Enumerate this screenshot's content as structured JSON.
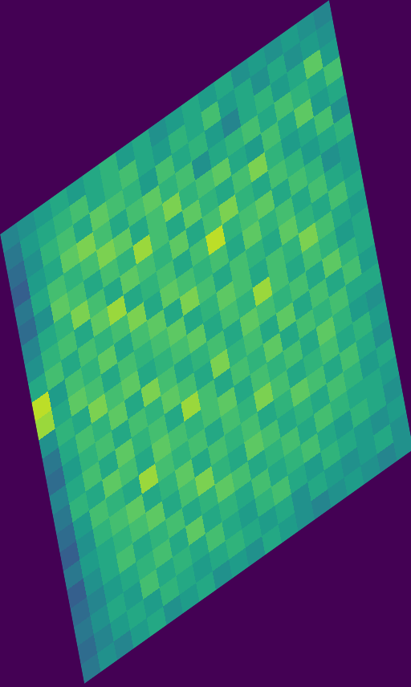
{
  "chart_data": {
    "type": "heatmap",
    "zlim": [
      0,
      1
    ],
    "tick_labels": false,
    "z": [
      [
        0.45,
        0.5,
        0.55,
        0.6,
        0.55,
        0.6,
        0.65,
        0.55,
        0.6,
        0.5,
        0.55,
        0.6,
        0.55,
        0.6,
        0.5,
        0.55,
        0.5,
        0.55,
        0.5,
        0.45
      ],
      [
        0.4,
        0.55,
        0.6,
        0.65,
        0.7,
        0.6,
        0.65,
        0.7,
        0.6,
        0.55,
        0.65,
        0.6,
        0.7,
        0.55,
        0.6,
        0.5,
        0.6,
        0.5,
        0.55,
        0.5
      ],
      [
        0.35,
        0.5,
        0.65,
        0.7,
        0.6,
        0.75,
        0.7,
        0.65,
        0.55,
        0.7,
        0.6,
        0.65,
        0.55,
        0.45,
        0.6,
        0.65,
        0.55,
        0.6,
        0.75,
        0.55
      ],
      [
        0.3,
        0.55,
        0.6,
        0.75,
        0.8,
        0.7,
        0.6,
        0.7,
        0.75,
        0.65,
        0.7,
        0.5,
        0.6,
        0.65,
        0.7,
        0.6,
        0.7,
        0.65,
        0.6,
        0.7
      ],
      [
        0.4,
        0.6,
        0.7,
        0.65,
        0.7,
        0.8,
        0.75,
        0.6,
        0.7,
        0.8,
        0.65,
        0.7,
        0.75,
        0.6,
        0.55,
        0.7,
        0.6,
        0.75,
        0.55,
        0.6
      ],
      [
        0.35,
        0.5,
        0.75,
        0.7,
        0.6,
        0.7,
        0.65,
        0.85,
        0.7,
        0.6,
        0.75,
        0.65,
        0.6,
        0.7,
        0.8,
        0.65,
        0.55,
        0.6,
        0.7,
        0.5
      ],
      [
        0.45,
        0.6,
        0.65,
        0.8,
        0.7,
        0.6,
        0.75,
        0.7,
        0.65,
        0.75,
        0.6,
        0.7,
        0.8,
        0.65,
        0.6,
        0.7,
        0.65,
        0.55,
        0.6,
        0.65
      ],
      [
        0.5,
        0.65,
        0.7,
        0.6,
        0.75,
        0.85,
        0.6,
        0.65,
        0.7,
        0.6,
        0.7,
        0.9,
        0.65,
        0.7,
        0.75,
        0.6,
        0.7,
        0.65,
        0.5,
        0.55
      ],
      [
        0.6,
        0.7,
        0.6,
        0.7,
        0.65,
        0.7,
        0.8,
        0.6,
        0.75,
        0.7,
        0.65,
        0.7,
        0.6,
        0.75,
        0.65,
        0.7,
        0.6,
        0.7,
        0.6,
        0.55
      ],
      [
        0.9,
        0.55,
        0.7,
        0.65,
        0.75,
        0.6,
        0.7,
        0.75,
        0.6,
        0.8,
        0.7,
        0.6,
        0.7,
        0.65,
        0.6,
        0.75,
        0.65,
        0.6,
        0.7,
        0.6
      ],
      [
        0.85,
        0.6,
        0.75,
        0.7,
        0.6,
        0.7,
        0.65,
        0.7,
        0.75,
        0.6,
        0.65,
        0.75,
        0.7,
        0.6,
        0.7,
        0.65,
        0.8,
        0.7,
        0.6,
        0.55
      ],
      [
        0.5,
        0.65,
        0.6,
        0.8,
        0.7,
        0.75,
        0.6,
        0.65,
        0.7,
        0.75,
        0.6,
        0.7,
        0.65,
        0.85,
        0.7,
        0.6,
        0.7,
        0.65,
        0.55,
        0.6
      ],
      [
        0.4,
        0.6,
        0.7,
        0.65,
        0.75,
        0.6,
        0.8,
        0.7,
        0.6,
        0.65,
        0.7,
        0.6,
        0.75,
        0.7,
        0.65,
        0.7,
        0.6,
        0.75,
        0.65,
        0.6
      ],
      [
        0.35,
        0.55,
        0.65,
        0.7,
        0.6,
        0.7,
        0.65,
        0.75,
        0.7,
        0.6,
        0.8,
        0.65,
        0.7,
        0.6,
        0.75,
        0.6,
        0.7,
        0.6,
        0.7,
        0.55
      ],
      [
        0.45,
        0.6,
        0.7,
        0.6,
        0.75,
        0.65,
        0.7,
        0.6,
        0.85,
        0.7,
        0.6,
        0.7,
        0.65,
        0.75,
        0.6,
        0.7,
        0.65,
        0.7,
        0.6,
        0.6
      ],
      [
        0.4,
        0.65,
        0.6,
        0.75,
        0.7,
        0.6,
        0.75,
        0.7,
        0.65,
        0.7,
        0.75,
        0.6,
        0.7,
        0.65,
        0.7,
        0.6,
        0.75,
        0.65,
        0.55,
        0.5
      ],
      [
        0.35,
        0.55,
        0.7,
        0.65,
        0.6,
        0.85,
        0.7,
        0.65,
        0.7,
        0.6,
        0.7,
        0.65,
        0.8,
        0.7,
        0.6,
        0.65,
        0.7,
        0.6,
        0.65,
        0.55
      ],
      [
        0.3,
        0.5,
        0.65,
        0.7,
        0.75,
        0.6,
        0.65,
        0.75,
        0.6,
        0.7,
        0.65,
        0.7,
        0.6,
        0.65,
        0.75,
        0.7,
        0.6,
        0.7,
        0.6,
        0.5
      ],
      [
        0.4,
        0.55,
        0.6,
        0.65,
        0.7,
        0.75,
        0.6,
        0.7,
        0.8,
        0.65,
        0.6,
        0.75,
        0.7,
        0.6,
        0.65,
        0.6,
        0.7,
        0.65,
        0.55,
        0.6
      ],
      [
        0.3,
        0.5,
        0.6,
        0.7,
        0.6,
        0.65,
        0.7,
        0.6,
        0.65,
        0.75,
        0.7,
        0.6,
        0.65,
        0.7,
        0.6,
        0.7,
        0.65,
        0.6,
        0.6,
        0.55
      ],
      [
        0.35,
        0.45,
        0.55,
        0.6,
        0.65,
        0.7,
        0.6,
        0.75,
        0.6,
        0.65,
        0.6,
        0.7,
        0.6,
        0.65,
        0.7,
        0.6,
        0.55,
        0.65,
        0.6,
        0.5
      ],
      [
        0.4,
        0.5,
        0.6,
        0.55,
        0.7,
        0.6,
        0.65,
        0.6,
        0.7,
        0.6,
        0.55,
        0.65,
        0.7,
        0.6,
        0.55,
        0.65,
        0.6,
        0.55,
        0.5,
        0.55
      ],
      [
        0.35,
        0.45,
        0.55,
        0.6,
        0.55,
        0.65,
        0.6,
        0.55,
        0.6,
        0.65,
        0.6,
        0.55,
        0.6,
        0.5,
        0.6,
        0.55,
        0.5,
        0.55,
        0.6,
        0.5
      ],
      [
        0.4,
        0.5,
        0.45,
        0.55,
        0.6,
        0.5,
        0.55,
        0.6,
        0.5,
        0.55,
        0.5,
        0.6,
        0.55,
        0.5,
        0.45,
        0.5,
        0.55,
        0.5,
        0.45,
        0.5
      ]
    ]
  }
}
